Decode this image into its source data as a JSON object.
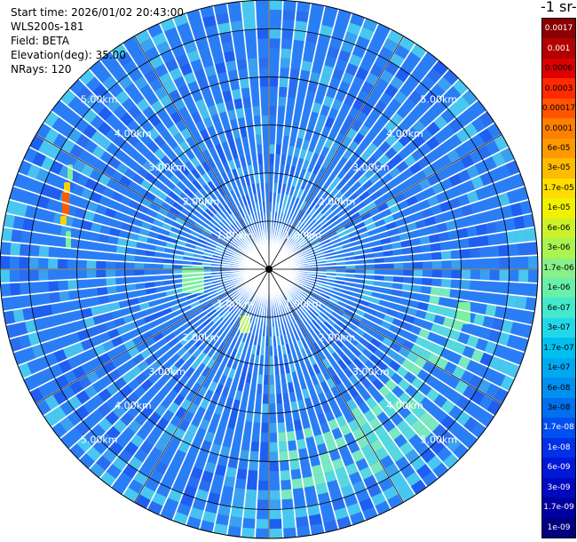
{
  "info": {
    "start_time": "Start time: 2026/01/02 20:43:00",
    "instrument": "WLS200s-181",
    "field": "Field: BETA",
    "elevation": "Elevation(deg): 35.00",
    "nrays": "NRays: 120"
  },
  "colorbar": {
    "title": "-1 sr-",
    "labels": [
      "0.0017",
      "0.001",
      "0.0006",
      "0.0003",
      "0.00017",
      "0.0001",
      "6e-05",
      "3e-05",
      "1.7e-05",
      "1e-05",
      "6e-06",
      "3e-06",
      "1.7e-06",
      "1e-06",
      "6e-07",
      "3e-07",
      "1.7e-07",
      "1e-07",
      "6e-08",
      "3e-08",
      "1.7e-08",
      "1e-08",
      "6e-09",
      "3e-09",
      "1.7e-09",
      "1e-09"
    ],
    "colors": [
      "#8b0000",
      "#b30000",
      "#dd0000",
      "#ff2a00",
      "#ff5500",
      "#ff7f00",
      "#ff9900",
      "#ffbb00",
      "#ffdd00",
      "#f0f000",
      "#ccf22a",
      "#a8f450",
      "#88f088",
      "#66f0aa",
      "#44e8cc",
      "#22d8e8",
      "#00c0f0",
      "#00a8f0",
      "#0090f0",
      "#0070f0",
      "#0050f0",
      "#0030e8",
      "#0018d8",
      "#0008c0",
      "#0000a0",
      "#000080"
    ],
    "text_colors": [
      "#ffffff",
      "#ffffff",
      "#000000",
      "#000000",
      "#000000",
      "#000000",
      "#000000",
      "#000000",
      "#000000",
      "#000000",
      "#000000",
      "#000000",
      "#000000",
      "#000000",
      "#000000",
      "#000000",
      "#000000",
      "#000000",
      "#000000",
      "#000000",
      "#ffffff",
      "#ffffff",
      "#ffffff",
      "#ffffff",
      "#ffffff",
      "#ffffff"
    ]
  },
  "range_labels": [
    "1.00km",
    "2.00km",
    "3.00km",
    "4.00km",
    "5.00km"
  ],
  "range_rings_km": [
    1,
    2,
    3,
    4,
    5
  ],
  "max_range_km": 5.6,
  "n_rays": 120,
  "colors": {
    "background_field": "#2a7ef5",
    "grid": "#000000",
    "ray_gap": "#ffffff"
  }
}
